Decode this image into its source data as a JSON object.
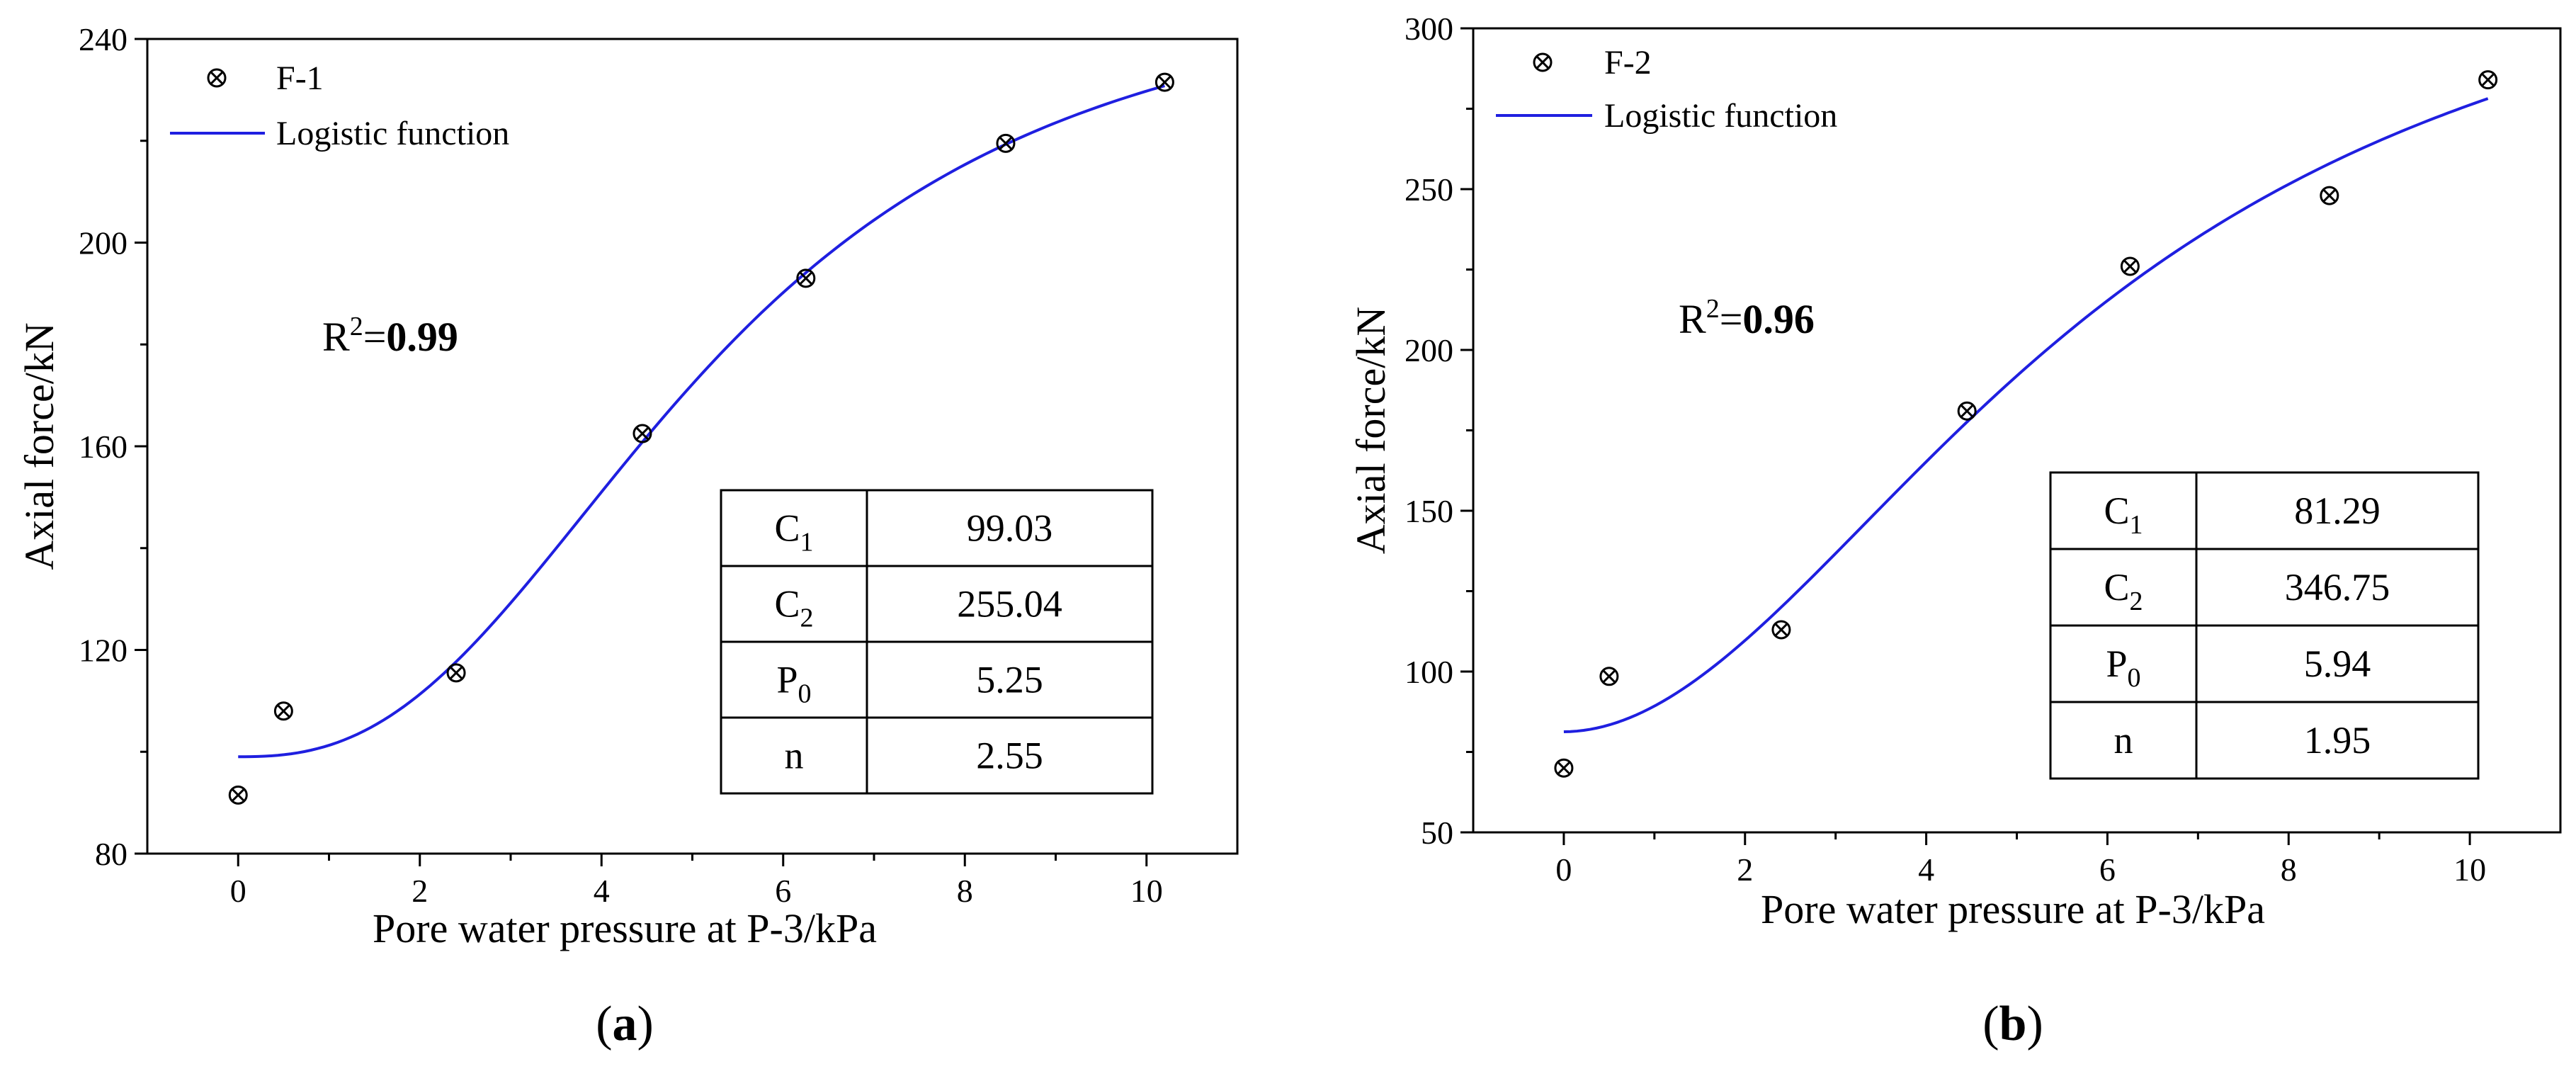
{
  "chart_data": [
    {
      "type": "scatter",
      "panel_label": "a",
      "xlabel": "Pore water pressure at P-3/kPa",
      "ylabel": "Axial force/kN",
      "xlim": [
        -1,
        11
      ],
      "ylim": [
        80,
        240
      ],
      "xticks": [
        0,
        2,
        4,
        6,
        8,
        10
      ],
      "yticks": [
        80,
        120,
        160,
        200,
        240
      ],
      "x_tick_labels": [
        "0",
        "2",
        "4",
        "6",
        "8",
        "10"
      ],
      "y_tick_labels": [
        "80",
        "120",
        "160",
        "200",
        "240"
      ],
      "legend": {
        "placement": "top-left",
        "scatter_label": "F-1",
        "line_label": "Logistic function"
      },
      "r2": {
        "prefix": "R",
        "sup": "2",
        "eq": "=",
        "value": "0.99"
      },
      "series": [
        {
          "name": "F-1",
          "kind": "scatter",
          "x": [
            0,
            0.5,
            2.4,
            4.45,
            6.25,
            8.45,
            10.2
          ],
          "y": [
            91.5,
            108,
            115.5,
            162.5,
            193,
            219.5,
            231.5
          ]
        },
        {
          "name": "Logistic function",
          "kind": "line",
          "color": "#1f1fe0",
          "function": "logistic",
          "x_range": [
            0,
            10.2
          ]
        }
      ],
      "params": {
        "C1": 99.03,
        "C2": 255.04,
        "P0": 5.25,
        "n": 2.55
      },
      "table": [
        {
          "base": "C",
          "sub": "1",
          "value": "99.03"
        },
        {
          "base": "C",
          "sub": "2",
          "value": "255.04"
        },
        {
          "base": "P",
          "sub": "0",
          "value": "5.25"
        },
        {
          "base": "n",
          "sub": "",
          "value": "2.55"
        }
      ]
    },
    {
      "type": "scatter",
      "panel_label": "b",
      "xlabel": "Pore water pressure at P-3/kPa",
      "ylabel": "Axial force/kN",
      "xlim": [
        -1,
        11
      ],
      "ylim": [
        50,
        300
      ],
      "xticks": [
        0,
        2,
        4,
        6,
        8,
        10
      ],
      "yticks": [
        50,
        100,
        150,
        200,
        250,
        300
      ],
      "x_tick_labels": [
        "0",
        "2",
        "4",
        "6",
        "8",
        "10"
      ],
      "y_tick_labels": [
        "50",
        "100",
        "150",
        "200",
        "250",
        "300"
      ],
      "legend": {
        "placement": "top-left",
        "scatter_label": "F-2",
        "line_label": "Logistic function"
      },
      "r2": {
        "prefix": "R",
        "sup": "2",
        "eq": "=",
        "value": "0.96"
      },
      "series": [
        {
          "name": "F-2",
          "kind": "scatter",
          "x": [
            0,
            0.5,
            2.4,
            4.45,
            6.25,
            8.45,
            10.2
          ],
          "y": [
            70,
            98.5,
            113,
            181,
            226,
            248,
            284
          ]
        },
        {
          "name": "Logistic function",
          "kind": "line",
          "color": "#1f1fe0",
          "function": "logistic",
          "x_range": [
            0,
            10.2
          ]
        }
      ],
      "params": {
        "C1": 81.29,
        "C2": 346.75,
        "P0": 5.94,
        "n": 1.95
      },
      "table": [
        {
          "base": "C",
          "sub": "1",
          "value": "81.29"
        },
        {
          "base": "C",
          "sub": "2",
          "value": "346.75"
        },
        {
          "base": "P",
          "sub": "0",
          "value": "5.94"
        },
        {
          "base": "n",
          "sub": "",
          "value": "1.95"
        }
      ]
    }
  ]
}
